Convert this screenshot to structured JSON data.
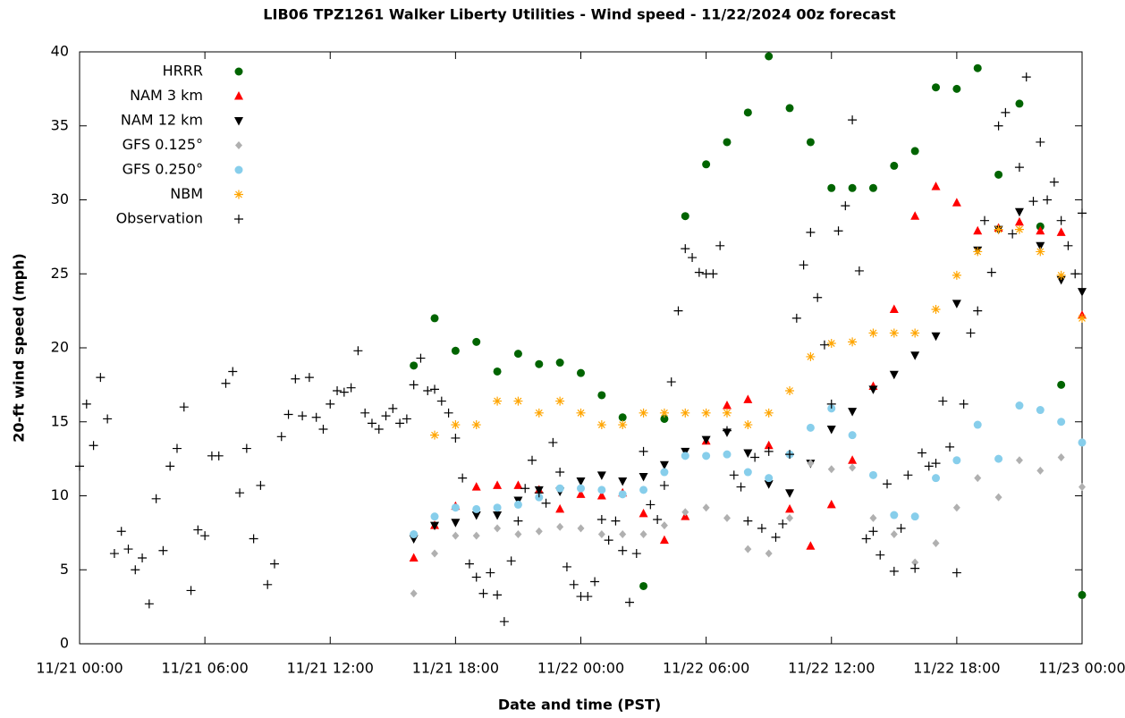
{
  "chart_data": {
    "type": "scatter",
    "title": "LIB06 TPZ1261 Walker Liberty Utilities - Wind speed - 11/22/2024 00z forecast",
    "x_label": "Date and time (PST)",
    "y_label": "20-ft wind speed (mph)",
    "xlim": [
      "11/21 00:00",
      "11/23 00:00"
    ],
    "xticks": [
      "11/21 00:00",
      "11/21 06:00",
      "11/21 12:00",
      "11/21 18:00",
      "11/22 00:00",
      "11/22 06:00",
      "11/22 12:00",
      "11/22 18:00",
      "11/23 00:00"
    ],
    "ylim": [
      0,
      40
    ],
    "yticks": [
      0,
      5,
      10,
      15,
      20,
      25,
      30,
      35,
      40
    ],
    "legend": "top-left",
    "x": [
      "11/21 16:00",
      "11/21 17:00",
      "11/21 18:00",
      "11/21 19:00",
      "11/21 20:00",
      "11/21 21:00",
      "11/21 22:00",
      "11/21 23:00",
      "11/22 00:00",
      "11/22 01:00",
      "11/22 02:00",
      "11/22 03:00",
      "11/22 04:00",
      "11/22 05:00",
      "11/22 06:00",
      "11/22 07:00",
      "11/22 08:00",
      "11/22 09:00",
      "11/22 10:00",
      "11/22 11:00",
      "11/22 12:00",
      "11/22 13:00",
      "11/22 14:00",
      "11/22 15:00",
      "11/22 16:00",
      "11/22 17:00",
      "11/22 18:00",
      "11/22 19:00",
      "11/22 20:00",
      "11/22 21:00",
      "11/22 22:00",
      "11/22 23:00",
      "11/23 00:00"
    ],
    "series": [
      {
        "name": "HRRR",
        "color": "#006400",
        "marker": "circle",
        "values": [
          18.8,
          22.0,
          19.8,
          20.4,
          18.4,
          19.6,
          18.9,
          19.0,
          18.3,
          16.8,
          15.3,
          3.9,
          15.2,
          28.9,
          32.4,
          33.9,
          35.9,
          39.7,
          36.2,
          33.9,
          30.8,
          30.8,
          30.8,
          32.3,
          33.3,
          37.6,
          37.5,
          38.9,
          31.7,
          36.5,
          28.2,
          17.5,
          3.3
        ]
      },
      {
        "name": "NAM 3 km",
        "color": "#ff0000",
        "marker": "triangle-up",
        "values": [
          5.8,
          8.0,
          9.3,
          10.6,
          10.7,
          10.7,
          10.4,
          9.1,
          10.1,
          10.0,
          10.2,
          8.8,
          7.0,
          8.6,
          13.7,
          16.1,
          16.5,
          13.4,
          9.1,
          6.6,
          9.4,
          12.4,
          17.4,
          22.6,
          28.9,
          30.9,
          29.8,
          27.9,
          28.1,
          28.5,
          27.9,
          27.8,
          22.2
        ]
      },
      {
        "name": "NAM 12 km",
        "color": "#000000",
        "marker": "triangle-down",
        "values": [
          7.1,
          8.0,
          8.2,
          8.7,
          8.7,
          9.7,
          10.4,
          10.3,
          11.0,
          11.4,
          11.0,
          11.3,
          12.1,
          13.0,
          13.8,
          14.3,
          12.9,
          10.8,
          10.2,
          12.2,
          14.5,
          15.7,
          17.2,
          18.2,
          19.5,
          20.8,
          23.0,
          26.6,
          28.0,
          29.2,
          26.9,
          24.6,
          23.8
        ]
      },
      {
        "name": "GFS 0.125°",
        "color": "#b0b0b0",
        "marker": "diamond",
        "values": [
          3.4,
          6.1,
          7.3,
          7.3,
          7.8,
          7.4,
          7.6,
          7.9,
          7.8,
          7.4,
          7.4,
          7.4,
          8.0,
          8.9,
          9.2,
          8.5,
          6.4,
          6.1,
          8.5,
          12.2,
          11.8,
          11.9,
          8.5,
          7.4,
          5.5,
          6.8,
          9.2,
          11.2,
          9.9,
          12.4,
          11.7,
          12.6,
          10.6
        ]
      },
      {
        "name": "GFS 0.250°",
        "color": "#87ceeb",
        "marker": "circle",
        "values": [
          7.4,
          8.6,
          9.2,
          9.1,
          9.2,
          9.4,
          9.9,
          10.5,
          10.5,
          10.4,
          10.1,
          10.4,
          11.6,
          12.7,
          12.7,
          12.8,
          11.6,
          11.2,
          12.8,
          14.6,
          15.9,
          14.1,
          11.4,
          8.7,
          8.6,
          11.2,
          12.4,
          14.8,
          12.5,
          16.1,
          15.8,
          15.0,
          13.6
        ]
      },
      {
        "name": "NBM",
        "color": "#ffa500",
        "marker": "star",
        "values": [
          null,
          14.1,
          14.8,
          14.8,
          16.4,
          16.4,
          15.6,
          16.4,
          15.6,
          14.8,
          14.8,
          15.6,
          15.6,
          15.6,
          15.6,
          15.6,
          14.8,
          15.6,
          17.1,
          19.4,
          20.3,
          20.4,
          21.0,
          21.0,
          21.0,
          22.6,
          24.9,
          26.5,
          28.0,
          28.0,
          26.5,
          24.9,
          22.0
        ]
      },
      {
        "name": "Observation",
        "color": "#000000",
        "marker": "plus",
        "x": [
          "11/21 00:00",
          "11/21 00:20",
          "11/21 00:40",
          "11/21 01:00",
          "11/21 01:20",
          "11/21 01:40",
          "11/21 02:00",
          "11/21 02:20",
          "11/21 02:40",
          "11/21 03:00",
          "11/21 03:20",
          "11/21 03:40",
          "11/21 04:00",
          "11/21 04:20",
          "11/21 04:40",
          "11/21 05:00",
          "11/21 05:20",
          "11/21 05:40",
          "11/21 06:00",
          "11/21 06:20",
          "11/21 06:40",
          "11/21 07:00",
          "11/21 07:20",
          "11/21 07:40",
          "11/21 08:00",
          "11/21 08:20",
          "11/21 08:40",
          "11/21 09:00",
          "11/21 09:20",
          "11/21 09:40",
          "11/21 10:00",
          "11/21 10:20",
          "11/21 10:40",
          "11/21 11:00",
          "11/21 11:20",
          "11/21 11:40",
          "11/21 12:00",
          "11/21 12:20",
          "11/21 12:40",
          "11/21 13:00",
          "11/21 13:20",
          "11/21 13:40",
          "11/21 14:00",
          "11/21 14:20",
          "11/21 14:40",
          "11/21 15:00",
          "11/21 15:20",
          "11/21 15:40",
          "11/21 16:00",
          "11/21 16:20",
          "11/21 16:40",
          "11/21 17:00",
          "11/21 17:20",
          "11/21 17:40",
          "11/21 18:00",
          "11/21 18:20",
          "11/21 18:40",
          "11/21 19:00",
          "11/21 19:20",
          "11/21 19:40",
          "11/21 20:00",
          "11/21 20:20",
          "11/21 20:40",
          "11/21 21:00",
          "11/21 21:20",
          "11/21 21:40",
          "11/21 22:00",
          "11/21 22:20",
          "11/21 22:40",
          "11/21 23:00",
          "11/21 23:20",
          "11/21 23:40",
          "11/22 00:00",
          "11/22 00:20",
          "11/22 00:40",
          "11/22 01:00",
          "11/22 01:20",
          "11/22 01:40",
          "11/22 02:00",
          "11/22 02:20",
          "11/22 02:40",
          "11/22 03:00",
          "11/22 03:20",
          "11/22 03:40",
          "11/22 04:00",
          "11/22 04:20",
          "11/22 04:40",
          "11/22 05:00",
          "11/22 05:20",
          "11/22 05:40",
          "11/22 06:00",
          "11/22 06:20",
          "11/22 06:40",
          "11/22 07:00",
          "11/22 07:20",
          "11/22 07:40",
          "11/22 08:00",
          "11/22 08:20",
          "11/22 08:40",
          "11/22 09:00",
          "11/22 09:20",
          "11/22 09:40",
          "11/22 10:00",
          "11/22 10:20",
          "11/22 10:40",
          "11/22 11:00",
          "11/22 11:20",
          "11/22 11:40",
          "11/22 12:00",
          "11/22 12:20",
          "11/22 12:40",
          "11/22 13:00",
          "11/22 13:20",
          "11/22 13:40",
          "11/22 14:00",
          "11/22 14:20",
          "11/22 14:40",
          "11/22 15:00",
          "11/22 15:20",
          "11/22 15:40",
          "11/22 16:00",
          "11/22 16:20",
          "11/22 16:40",
          "11/22 17:00",
          "11/22 17:20",
          "11/22 17:40",
          "11/22 18:00",
          "11/22 18:20",
          "11/22 18:40",
          "11/22 19:00",
          "11/22 19:20",
          "11/22 19:40",
          "11/22 20:00",
          "11/22 20:20",
          "11/22 20:40",
          "11/22 21:00",
          "11/22 21:20",
          "11/22 21:40",
          "11/22 22:00",
          "11/22 22:20",
          "11/22 22:40",
          "11/22 23:00",
          "11/22 23:20",
          "11/22 23:40",
          "11/23 00:00"
        ],
        "values": [
          12.0,
          16.2,
          13.4,
          18.0,
          15.2,
          6.1,
          7.6,
          6.4,
          5.0,
          5.8,
          2.7,
          9.8,
          6.3,
          12.0,
          13.2,
          16.0,
          3.6,
          7.7,
          7.3,
          12.7,
          12.7,
          17.6,
          18.4,
          10.2,
          13.2,
          7.1,
          10.7,
          4.0,
          5.4,
          14.0,
          15.5,
          17.9,
          15.4,
          18.0,
          15.3,
          14.5,
          16.2,
          17.1,
          17.0,
          17.3,
          19.8,
          15.6,
          14.9,
          14.5,
          15.4,
          15.9,
          14.9,
          15.2,
          17.5,
          19.3,
          17.1,
          17.2,
          16.4,
          15.6,
          13.9,
          11.2,
          5.4,
          4.5,
          3.4,
          4.8,
          3.3,
          1.5,
          5.6,
          8.3,
          10.5,
          12.4,
          10.2,
          9.5,
          13.6,
          11.6,
          5.2,
          4.0,
          3.2,
          3.2,
          4.2,
          8.4,
          7.0,
          8.3,
          6.3,
          2.8,
          6.1,
          13.0,
          9.4,
          8.4,
          10.7,
          17.7,
          22.5,
          26.7,
          26.1,
          25.1,
          25.0,
          25.0,
          26.9,
          14.4,
          11.4,
          10.6,
          8.3,
          12.6,
          7.8,
          13.0,
          7.2,
          8.1,
          12.8,
          22.0,
          25.6,
          27.8,
          23.4,
          20.2,
          16.2,
          27.9,
          29.6,
          35.4,
          25.2,
          7.1,
          7.6,
          6.0,
          10.8,
          4.9,
          7.8,
          11.4,
          5.1,
          12.9,
          12.0,
          12.2,
          16.4,
          13.3,
          4.8,
          16.2,
          21.0,
          22.5,
          28.6,
          25.1,
          35.0,
          35.9,
          27.7,
          32.2,
          38.3,
          29.9,
          33.9,
          30.0,
          31.2,
          28.6,
          26.9,
          25.0,
          29.1
        ]
      }
    ]
  }
}
